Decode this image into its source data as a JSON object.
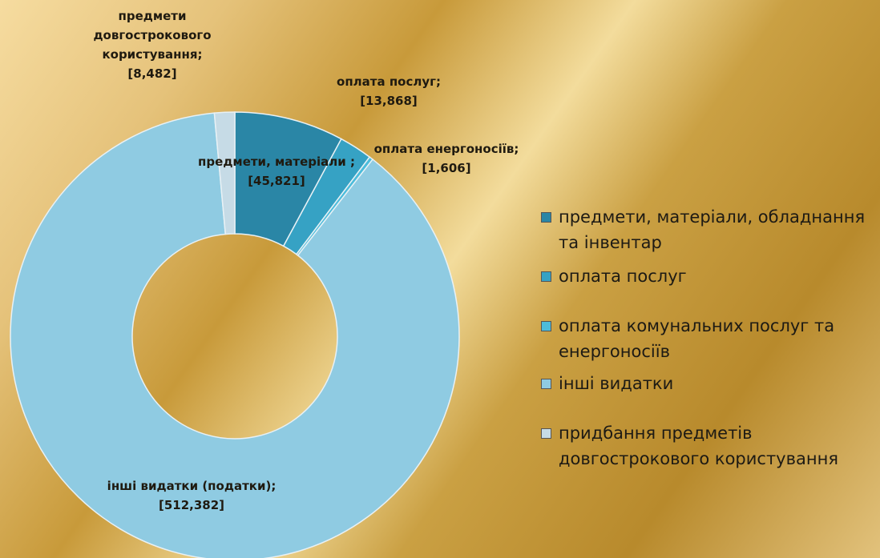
{
  "chart_data": {
    "type": "donut",
    "categories": [
      "предмети, матеріали, обладнання та інвентар",
      "оплата послуг",
      "оплата комунальних послуг та енергоносіїв",
      "інші видатки",
      "придбання предметів довгострокового користування"
    ],
    "values": [
      45.821,
      13.868,
      1.606,
      512.382,
      8.482
    ],
    "value_labels": [
      "[45,821]",
      "[13,868]",
      "[1,606]",
      "[512,382]",
      "[8,482]"
    ],
    "data_labels": [
      "предмети, матеріали ;",
      "оплата послуг;",
      "оплата енергоносіїв;",
      "інші видатки (податки);",
      "предмети довгострокового користування;"
    ],
    "colors": [
      "#2a86a6",
      "#36a2c4",
      "#4cbcdb",
      "#8fcbe2",
      "#c6dbe6"
    ],
    "legend": "right"
  }
}
